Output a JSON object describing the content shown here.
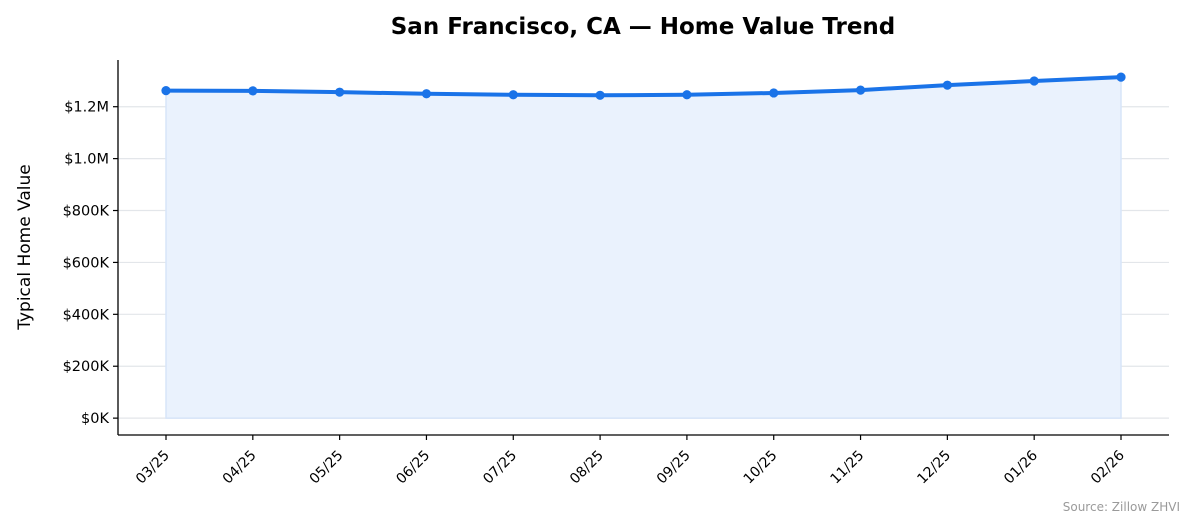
{
  "chart_data": {
    "type": "area",
    "title": "San Francisco, CA — Home Value Trend",
    "xlabel": "",
    "ylabel": "Typical Home Value",
    "categories": [
      "03/25",
      "04/25",
      "05/25",
      "06/25",
      "07/25",
      "08/25",
      "09/25",
      "10/25",
      "11/25",
      "12/25",
      "01/26",
      "02/26"
    ],
    "series": [
      {
        "values": [
          1262000,
          1261000,
          1256000,
          1250000,
          1246000,
          1244000,
          1246000,
          1253000,
          1264000,
          1283000,
          1299000,
          1314000
        ],
        "color": "#1a73e8",
        "fill_color": "#eaf2fd",
        "marker": "circle"
      }
    ],
    "ylim": [
      -65000,
      1380000
    ],
    "yticks": [
      0,
      200000,
      400000,
      600000,
      800000,
      1000000,
      1200000
    ],
    "ytick_labels": [
      "$0K",
      "$200K",
      "$400K",
      "$600K",
      "$800K",
      "$1.0M",
      "$1.2M"
    ],
    "grid": "horizontal",
    "legend": "none"
  },
  "source_note": "Source: Zillow ZHVI"
}
